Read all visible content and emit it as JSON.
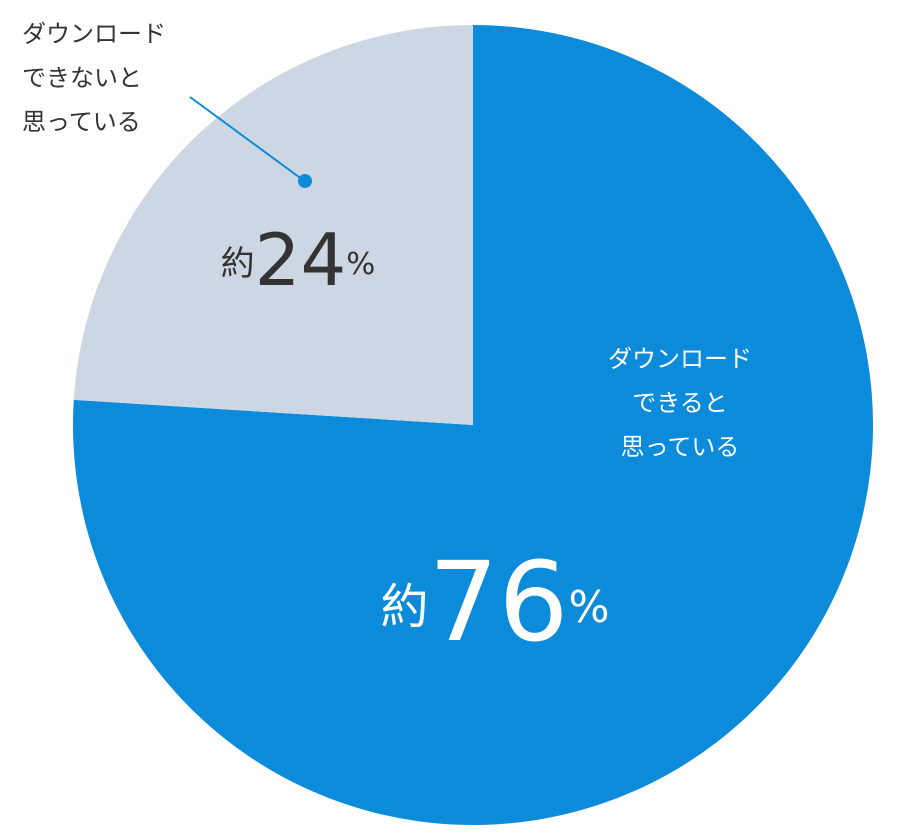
{
  "chart_data": {
    "type": "pie",
    "categories": [
      "ダウンロード\nできると\n思っている",
      "ダウンロード\nできないと\n思っている"
    ],
    "values": [
      76,
      24
    ],
    "value_labels": [
      "約76%",
      "約24%"
    ],
    "colors": [
      "#0b8bd9",
      "#cdd7e4"
    ]
  }
}
